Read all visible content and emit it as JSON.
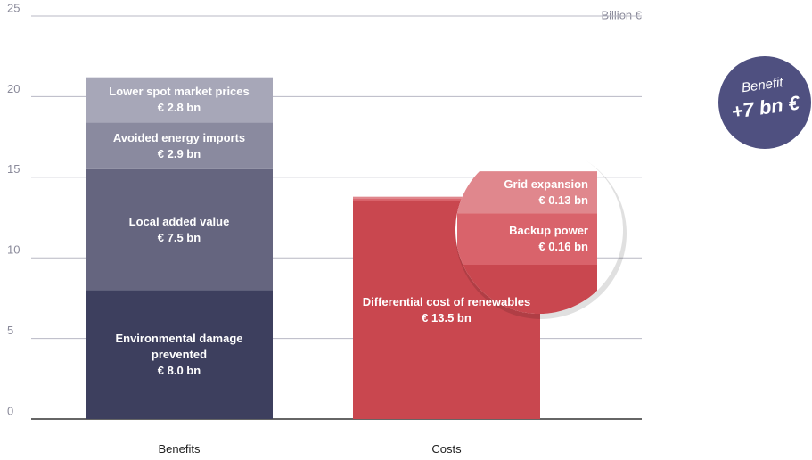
{
  "chart_data": {
    "type": "stacked_bar",
    "ylabel": "Billion €",
    "categories": [
      "Benefits",
      "Costs"
    ],
    "ylim": [
      0,
      25
    ],
    "yticks": [
      0,
      5,
      10,
      15,
      20,
      25
    ],
    "grid": true,
    "series": [
      {
        "name": "Environmental damage prevented",
        "color": "#3d3f5e",
        "values": [
          8.0,
          null
        ],
        "value_labels": [
          "€ 8.0 bn",
          null
        ]
      },
      {
        "name": "Local added value",
        "color": "#65657f",
        "values": [
          7.5,
          null
        ],
        "value_labels": [
          "€ 7.5 bn",
          null
        ]
      },
      {
        "name": "Avoided energy imports",
        "color": "#8a8a9f",
        "values": [
          2.9,
          null
        ],
        "value_labels": [
          "€ 2.9 bn",
          null
        ]
      },
      {
        "name": "Lower spot market prices",
        "color": "#a7a7b8",
        "values": [
          2.8,
          null
        ],
        "value_labels": [
          "€ 2.8 bn",
          null
        ]
      },
      {
        "name": "Differential cost of renewables",
        "color": "#c9474f",
        "values": [
          null,
          13.5
        ],
        "value_labels": [
          null,
          "€ 13.5 bn"
        ]
      },
      {
        "name": "Backup power",
        "color": "#d9636b",
        "values": [
          null,
          0.16
        ],
        "value_labels": [
          null,
          "€ 0.16 bn"
        ]
      },
      {
        "name": "Grid expansion",
        "color": "#e0878d",
        "values": [
          null,
          0.13
        ],
        "value_labels": [
          null,
          "€ 0.13 bn"
        ]
      }
    ],
    "annotations": [
      "Benefit",
      "+7 bn €"
    ]
  }
}
